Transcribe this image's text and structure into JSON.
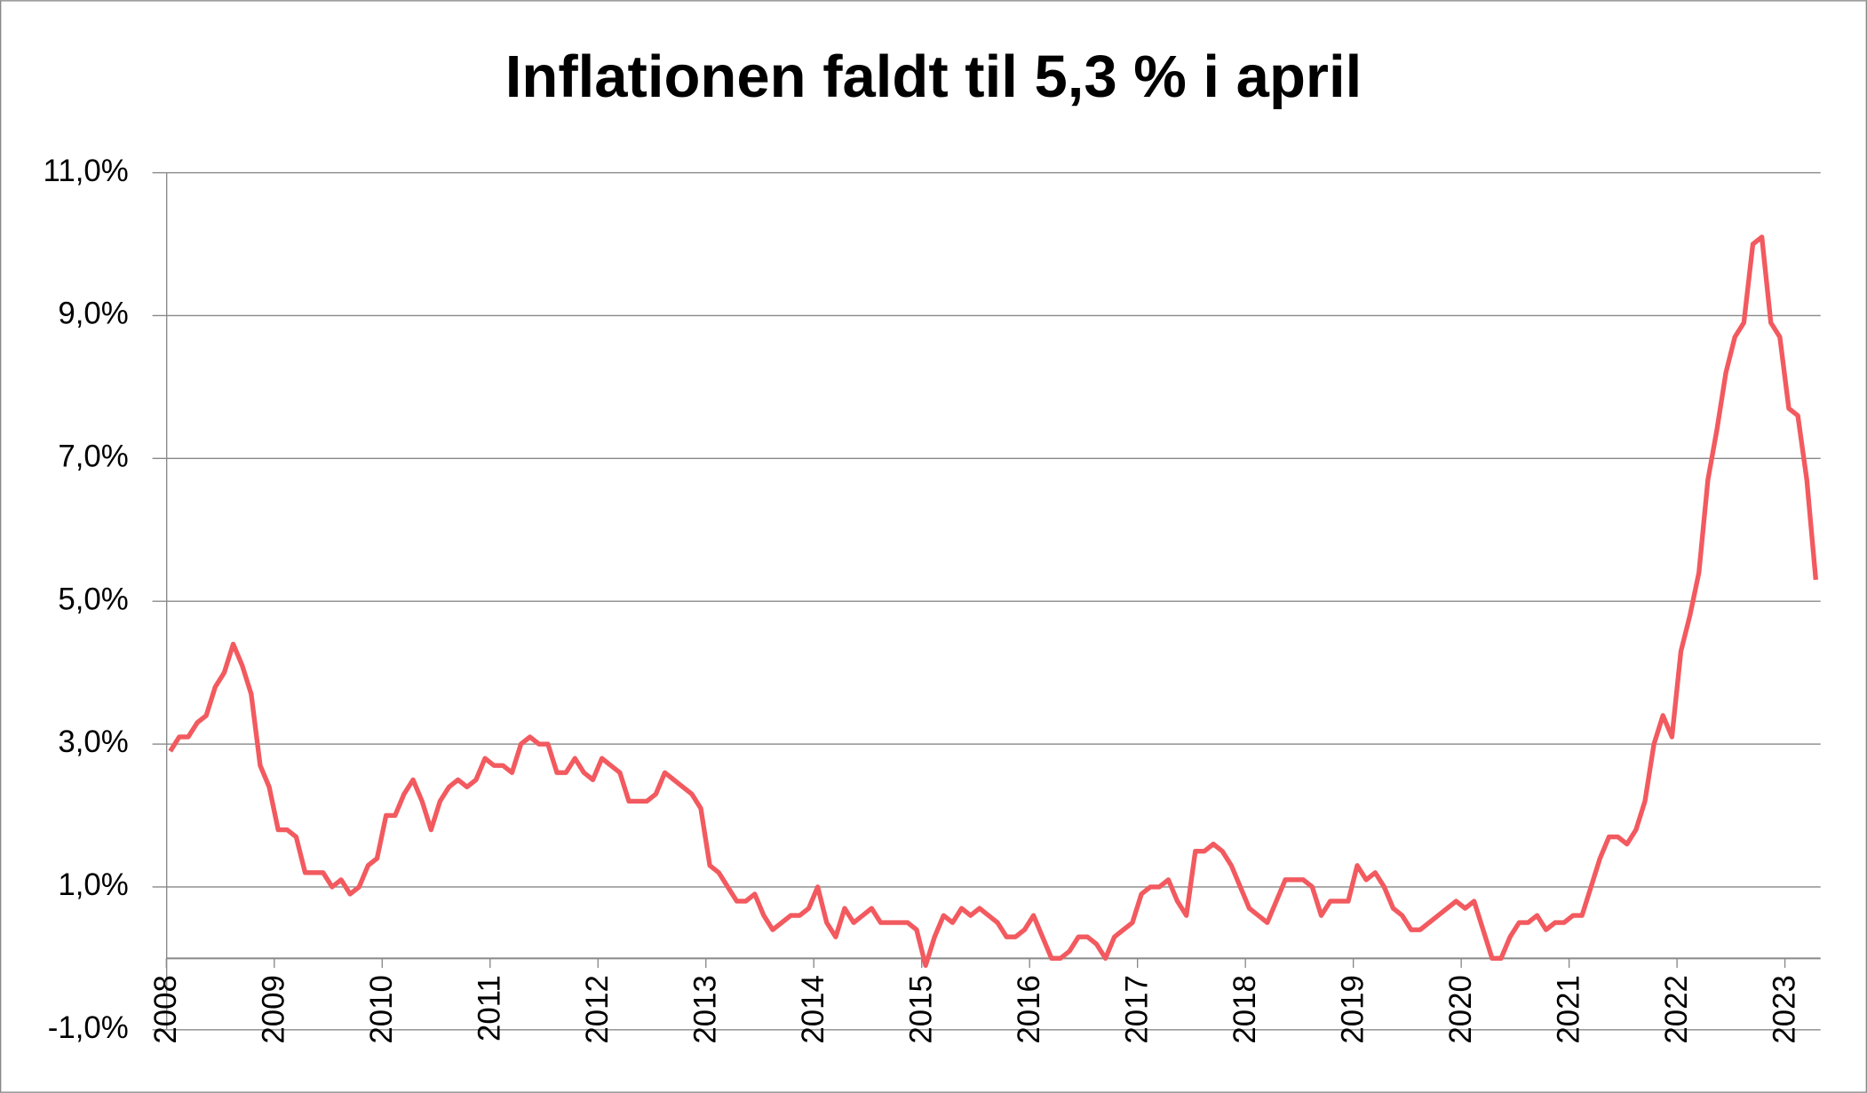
{
  "chart_data": {
    "type": "line",
    "title": "Inflationen faldt til 5,3 % i april",
    "categories": [
      "2008",
      null,
      null,
      null,
      null,
      null,
      null,
      null,
      null,
      null,
      null,
      null,
      "2009",
      null,
      null,
      null,
      null,
      null,
      null,
      null,
      null,
      null,
      null,
      null,
      "2010",
      null,
      null,
      null,
      null,
      null,
      null,
      null,
      null,
      null,
      null,
      null,
      "2011",
      null,
      null,
      null,
      null,
      null,
      null,
      null,
      null,
      null,
      null,
      null,
      "2012",
      null,
      null,
      null,
      null,
      null,
      null,
      null,
      null,
      null,
      null,
      null,
      "2013",
      null,
      null,
      null,
      null,
      null,
      null,
      null,
      null,
      null,
      null,
      null,
      "2014",
      null,
      null,
      null,
      null,
      null,
      null,
      null,
      null,
      null,
      null,
      null,
      "2015",
      null,
      null,
      null,
      null,
      null,
      null,
      null,
      null,
      null,
      null,
      null,
      "2016",
      null,
      null,
      null,
      null,
      null,
      null,
      null,
      null,
      null,
      null,
      null,
      "2017",
      null,
      null,
      null,
      null,
      null,
      null,
      null,
      null,
      null,
      null,
      null,
      "2018",
      null,
      null,
      null,
      null,
      null,
      null,
      null,
      null,
      null,
      null,
      null,
      "2019",
      null,
      null,
      null,
      null,
      null,
      null,
      null,
      null,
      null,
      null,
      null,
      "2020",
      null,
      null,
      null,
      null,
      null,
      null,
      null,
      null,
      null,
      null,
      null,
      "2021",
      null,
      null,
      null,
      null,
      null,
      null,
      null,
      null,
      null,
      null,
      null,
      "2022",
      null,
      null,
      null,
      null,
      null,
      null,
      null,
      null,
      null,
      null,
      null,
      "2023",
      null,
      null,
      null
    ],
    "series": [
      {
        "color": "#f25a5f",
        "values": [
          2.9,
          3.1,
          3.1,
          3.3,
          3.4,
          3.8,
          4.0,
          4.4,
          4.1,
          3.7,
          2.7,
          2.4,
          1.8,
          1.8,
          1.7,
          1.2,
          1.2,
          1.2,
          1.0,
          1.1,
          0.9,
          1.0,
          1.3,
          1.4,
          2.0,
          2.0,
          2.3,
          2.5,
          2.2,
          1.8,
          2.2,
          2.4,
          2.5,
          2.4,
          2.5,
          2.8,
          2.7,
          2.7,
          2.6,
          3.0,
          3.1,
          3.0,
          3.0,
          2.6,
          2.6,
          2.8,
          2.6,
          2.5,
          2.8,
          2.7,
          2.6,
          2.2,
          2.2,
          2.2,
          2.3,
          2.6,
          2.5,
          2.4,
          2.3,
          2.1,
          1.3,
          1.2,
          1.0,
          0.8,
          0.8,
          0.9,
          0.6,
          0.4,
          0.5,
          0.6,
          0.6,
          0.7,
          1.0,
          0.5,
          0.3,
          0.7,
          0.5,
          0.6,
          0.7,
          0.5,
          0.5,
          0.5,
          0.5,
          0.4,
          -0.1,
          0.3,
          0.6,
          0.5,
          0.7,
          0.6,
          0.7,
          0.6,
          0.5,
          0.3,
          0.3,
          0.4,
          0.6,
          0.3,
          0.0,
          0.0,
          0.1,
          0.3,
          0.3,
          0.2,
          0.0,
          0.3,
          0.4,
          0.5,
          0.9,
          1.0,
          1.0,
          1.1,
          0.8,
          0.6,
          1.5,
          1.5,
          1.6,
          1.5,
          1.3,
          1.0,
          0.7,
          0.6,
          0.5,
          0.8,
          1.1,
          1.1,
          1.1,
          1.0,
          0.6,
          0.8,
          0.8,
          0.8,
          1.3,
          1.1,
          1.2,
          1.0,
          0.7,
          0.6,
          0.4,
          0.4,
          0.5,
          0.6,
          0.7,
          0.8,
          0.7,
          0.8,
          0.4,
          0.0,
          0.0,
          0.3,
          0.5,
          0.5,
          0.6,
          0.4,
          0.5,
          0.5,
          0.6,
          0.6,
          1.0,
          1.4,
          1.7,
          1.7,
          1.6,
          1.8,
          2.2,
          3.0,
          3.4,
          3.1,
          4.3,
          4.8,
          5.4,
          6.7,
          7.4,
          8.2,
          8.7,
          8.9,
          10.0,
          10.1,
          8.9,
          8.7,
          7.7,
          7.6,
          6.7,
          5.3
        ]
      }
    ],
    "ylim": [
      -1,
      11
    ],
    "yticks": [
      {
        "value": -1,
        "label": "-1,0%"
      },
      {
        "value": 1,
        "label": "1,0%"
      },
      {
        "value": 3,
        "label": "3,0%"
      },
      {
        "value": 5,
        "label": "5,0%"
      },
      {
        "value": 7,
        "label": "7,0%"
      },
      {
        "value": 9,
        "label": "9,0%"
      },
      {
        "value": 11,
        "label": "11,0%"
      }
    ],
    "grid": true
  }
}
